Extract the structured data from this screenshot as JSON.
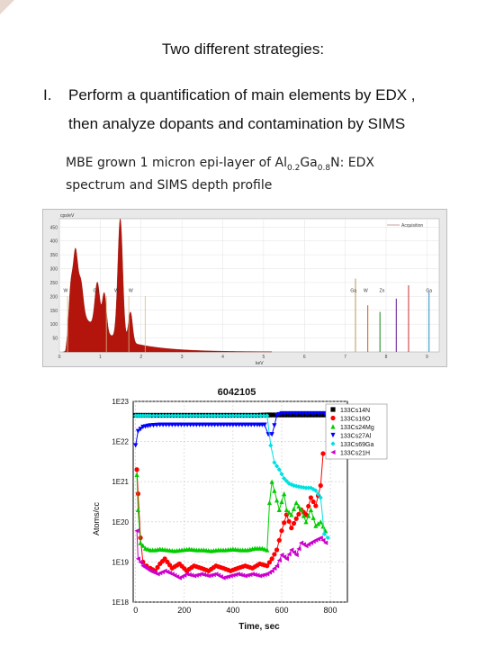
{
  "slide": {
    "heading": "Two different strategies:",
    "item_number": "I.",
    "item_line1": "Perform a quantification of main elements by EDX ,",
    "item_line2": "then analyze dopants and contamination by SIMS",
    "caption_part1": "MBE grown  1 micron epi-layer of  Al",
    "caption_sub1": "0.2",
    "caption_part2": "Ga",
    "caption_sub2": "0.8",
    "caption_part3": "N: EDX",
    "caption_line2": "spectrum and SIMS depth profile"
  },
  "edx": {
    "type": "area",
    "ylabel": "cps/eV",
    "legend": "Acquisition",
    "yticks": [
      "450",
      "400",
      "350",
      "300",
      "250",
      "200",
      "150",
      "100",
      "50"
    ],
    "xticks": [
      "0",
      "1",
      "2",
      "3",
      "4",
      "5",
      "6",
      "7",
      "8",
      "9"
    ],
    "xlabel": "keV",
    "ylim": [
      0,
      480
    ],
    "xlim": [
      0,
      9.3
    ],
    "fill_color": "#b3150c",
    "peaks": [
      {
        "x": 0.28,
        "y": 160,
        "w": 0.05
      },
      {
        "x": 0.39,
        "y": 220,
        "w": 0.05
      },
      {
        "x": 0.52,
        "y": 120,
        "w": 0.06
      },
      {
        "x": 0.93,
        "y": 165,
        "w": 0.06
      },
      {
        "x": 1.1,
        "y": 140,
        "w": 0.05
      },
      {
        "x": 1.49,
        "y": 435,
        "w": 0.06
      },
      {
        "x": 1.74,
        "y": 110,
        "w": 0.05
      }
    ],
    "element_labels": [
      {
        "label": "W",
        "x": 0.15
      },
      {
        "label": "Ga",
        "x": 0.9
      },
      {
        "label": "W",
        "x": 1.4
      },
      {
        "label": "W",
        "x": 1.75
      },
      {
        "label": "Ga",
        "x": 7.2
      },
      {
        "label": "W",
        "x": 7.5
      },
      {
        "label": "Zn",
        "x": 7.9
      },
      {
        "label": "Ga",
        "x": 9.05
      }
    ],
    "lines": [
      {
        "x": 7.25,
        "h": 0.55,
        "color": "#c8a96b"
      },
      {
        "x": 7.55,
        "h": 0.35,
        "color": "#d07b2a"
      },
      {
        "x": 7.85,
        "h": 0.3,
        "color": "#3c9a3c"
      },
      {
        "x": 8.25,
        "h": 0.4,
        "color": "#7b3aa6"
      },
      {
        "x": 8.55,
        "h": 0.5,
        "color": "#d05050"
      },
      {
        "x": 9.05,
        "h": 0.45,
        "color": "#4aa0c8"
      }
    ]
  },
  "chart_data": {
    "type": "scatter",
    "title": "6042105",
    "xlabel": "Time, sec",
    "ylabel": "Atoms/cc",
    "ylim": [
      1e+18,
      1e+23
    ],
    "xlim": [
      -10,
      870
    ],
    "yscale": "log",
    "yticks": [
      "1E23",
      "1E22",
      "1E21",
      "1E20",
      "1E19",
      "1E18"
    ],
    "xticks": [
      0,
      200,
      400,
      600,
      800
    ],
    "legend_position": "top-right",
    "series": [
      {
        "name": "133Cs14N",
        "color": "#000000",
        "marker": "square",
        "points": [
          [
            0,
            4.5e+22
          ],
          [
            20,
            4.5e+22
          ],
          [
            60,
            4.5e+22
          ],
          [
            100,
            4.5e+22
          ],
          [
            150,
            4.5e+22
          ],
          [
            200,
            4.5e+22
          ],
          [
            250,
            4.5e+22
          ],
          [
            300,
            4.5e+22
          ],
          [
            350,
            4.5e+22
          ],
          [
            400,
            4.5e+22
          ],
          [
            450,
            4.5e+22
          ],
          [
            500,
            4.5e+22
          ],
          [
            540,
            4.6e+22
          ],
          [
            560,
            4.6e+22
          ],
          [
            600,
            4.6e+22
          ],
          [
            650,
            4.6e+22
          ],
          [
            700,
            4.6e+22
          ],
          [
            750,
            4.6e+22
          ],
          [
            790,
            4.6e+22
          ]
        ]
      },
      {
        "name": "133Cs16O",
        "color": "#ff0000",
        "marker": "circle",
        "points": [
          [
            5,
            2e+21
          ],
          [
            10,
            5e+20
          ],
          [
            20,
            4e+19
          ],
          [
            30,
            1e+19
          ],
          [
            45,
            8e+18
          ],
          [
            60,
            7e+18
          ],
          [
            80,
            6e+18
          ],
          [
            100,
            9e+18
          ],
          [
            120,
            1.2e+19
          ],
          [
            150,
            7e+18
          ],
          [
            180,
            9e+18
          ],
          [
            210,
            6e+18
          ],
          [
            240,
            8e+18
          ],
          [
            270,
            7e+18
          ],
          [
            300,
            6e+18
          ],
          [
            330,
            8e+18
          ],
          [
            360,
            7e+18
          ],
          [
            390,
            6e+18
          ],
          [
            420,
            7e+18
          ],
          [
            450,
            8e+18
          ],
          [
            480,
            7e+18
          ],
          [
            510,
            9e+18
          ],
          [
            540,
            8e+18
          ],
          [
            560,
            1.2e+19
          ],
          [
            580,
            2e+19
          ],
          [
            600,
            6e+19
          ],
          [
            620,
            1.5e+20
          ],
          [
            640,
            7e+19
          ],
          [
            660,
            1.2e+20
          ],
          [
            680,
            2e+20
          ],
          [
            700,
            1.5e+20
          ],
          [
            720,
            4e+20
          ],
          [
            740,
            2.5e+20
          ],
          [
            760,
            8e+20
          ],
          [
            770,
            5e+21
          ]
        ]
      },
      {
        "name": "133Cs24Mg",
        "color": "#00cc00",
        "marker": "triangle-up",
        "points": [
          [
            5,
            1.5e+21
          ],
          [
            10,
            2e+20
          ],
          [
            20,
            3e+19
          ],
          [
            40,
            2.2e+19
          ],
          [
            60,
            2e+19
          ],
          [
            80,
            2e+19
          ],
          [
            100,
            2.1e+19
          ],
          [
            130,
            2e+19
          ],
          [
            160,
            1.9e+19
          ],
          [
            190,
            2e+19
          ],
          [
            220,
            2.1e+19
          ],
          [
            250,
            2e+19
          ],
          [
            280,
            2e+19
          ],
          [
            310,
            1.9e+19
          ],
          [
            340,
            2e+19
          ],
          [
            370,
            2e+19
          ],
          [
            400,
            2.1e+19
          ],
          [
            430,
            2e+19
          ],
          [
            460,
            2e+19
          ],
          [
            490,
            2.2e+19
          ],
          [
            520,
            2.2e+19
          ],
          [
            540,
            2e+19
          ],
          [
            550,
            3e+20
          ],
          [
            560,
            1e+21
          ],
          [
            570,
            6e+20
          ],
          [
            590,
            2e+20
          ],
          [
            610,
            5e+20
          ],
          [
            620,
            2e+20
          ],
          [
            640,
            1.5e+20
          ],
          [
            660,
            3e+20
          ],
          [
            680,
            2e+20
          ],
          [
            700,
            1e+20
          ],
          [
            720,
            2e+20
          ],
          [
            740,
            8e+19
          ],
          [
            760,
            1e+20
          ],
          [
            780,
            6e+19
          ]
        ]
      },
      {
        "name": "133Cs27Al",
        "color": "#0000ff",
        "marker": "triangle-down",
        "points": [
          [
            0,
            8e+21
          ],
          [
            10,
            1.8e+22
          ],
          [
            30,
            2.3e+22
          ],
          [
            60,
            2.5e+22
          ],
          [
            100,
            2.6e+22
          ],
          [
            150,
            2.6e+22
          ],
          [
            200,
            2.6e+22
          ],
          [
            250,
            2.6e+22
          ],
          [
            300,
            2.6e+22
          ],
          [
            350,
            2.6e+22
          ],
          [
            400,
            2.6e+22
          ],
          [
            450,
            2.6e+22
          ],
          [
            500,
            2.6e+22
          ],
          [
            530,
            2.6e+22
          ],
          [
            545,
            1.5e+22
          ],
          [
            560,
            1.5e+22
          ],
          [
            570,
            2.5e+22
          ],
          [
            580,
            4.5e+22
          ],
          [
            600,
            5e+22
          ],
          [
            650,
            5e+22
          ],
          [
            700,
            5e+22
          ],
          [
            750,
            5e+22
          ],
          [
            790,
            5e+22
          ]
        ]
      },
      {
        "name": "133Cs69Ga",
        "color": "#00e0e0",
        "marker": "diamond",
        "points": [
          [
            0,
            4.4e+22
          ],
          [
            30,
            4.4e+22
          ],
          [
            60,
            4.4e+22
          ],
          [
            100,
            4.4e+22
          ],
          [
            150,
            4.4e+22
          ],
          [
            200,
            4.4e+22
          ],
          [
            250,
            4.4e+22
          ],
          [
            300,
            4.4e+22
          ],
          [
            350,
            4.4e+22
          ],
          [
            400,
            4.4e+22
          ],
          [
            450,
            4.4e+22
          ],
          [
            500,
            4.4e+22
          ],
          [
            540,
            4.4e+22
          ],
          [
            555,
            8e+21
          ],
          [
            570,
            3e+21
          ],
          [
            590,
            2e+21
          ],
          [
            610,
            1.2e+21
          ],
          [
            630,
            9e+20
          ],
          [
            650,
            8e+20
          ],
          [
            670,
            7.5e+20
          ],
          [
            700,
            7e+20
          ],
          [
            720,
            7e+20
          ],
          [
            740,
            6e+20
          ],
          [
            760,
            4e+20
          ],
          [
            775,
            5e+19
          ],
          [
            790,
            4e+19
          ]
        ]
      },
      {
        "name": "133Cs21H",
        "color": "#cc00cc",
        "marker": "triangle-left",
        "points": [
          [
            5,
            6e+19
          ],
          [
            10,
            1.2e+19
          ],
          [
            30,
            8e+18
          ],
          [
            60,
            6e+18
          ],
          [
            90,
            5e+18
          ],
          [
            120,
            6e+18
          ],
          [
            150,
            5e+18
          ],
          [
            180,
            4e+18
          ],
          [
            210,
            5e+18
          ],
          [
            240,
            4.5e+18
          ],
          [
            270,
            5e+18
          ],
          [
            300,
            4.5e+18
          ],
          [
            330,
            5e+18
          ],
          [
            360,
            4e+18
          ],
          [
            390,
            4.5e+18
          ],
          [
            420,
            5e+18
          ],
          [
            450,
            4.5e+18
          ],
          [
            480,
            5e+18
          ],
          [
            510,
            4.5e+18
          ],
          [
            540,
            5e+18
          ],
          [
            560,
            6e+18
          ],
          [
            580,
            8e+18
          ],
          [
            600,
            1.5e+19
          ],
          [
            620,
            1.2e+19
          ],
          [
            640,
            2e+19
          ],
          [
            660,
            1.5e+19
          ],
          [
            680,
            3e+19
          ],
          [
            700,
            2.5e+19
          ],
          [
            720,
            3e+19
          ],
          [
            740,
            3.5e+19
          ],
          [
            760,
            4e+19
          ],
          [
            780,
            3e+19
          ]
        ]
      }
    ]
  }
}
